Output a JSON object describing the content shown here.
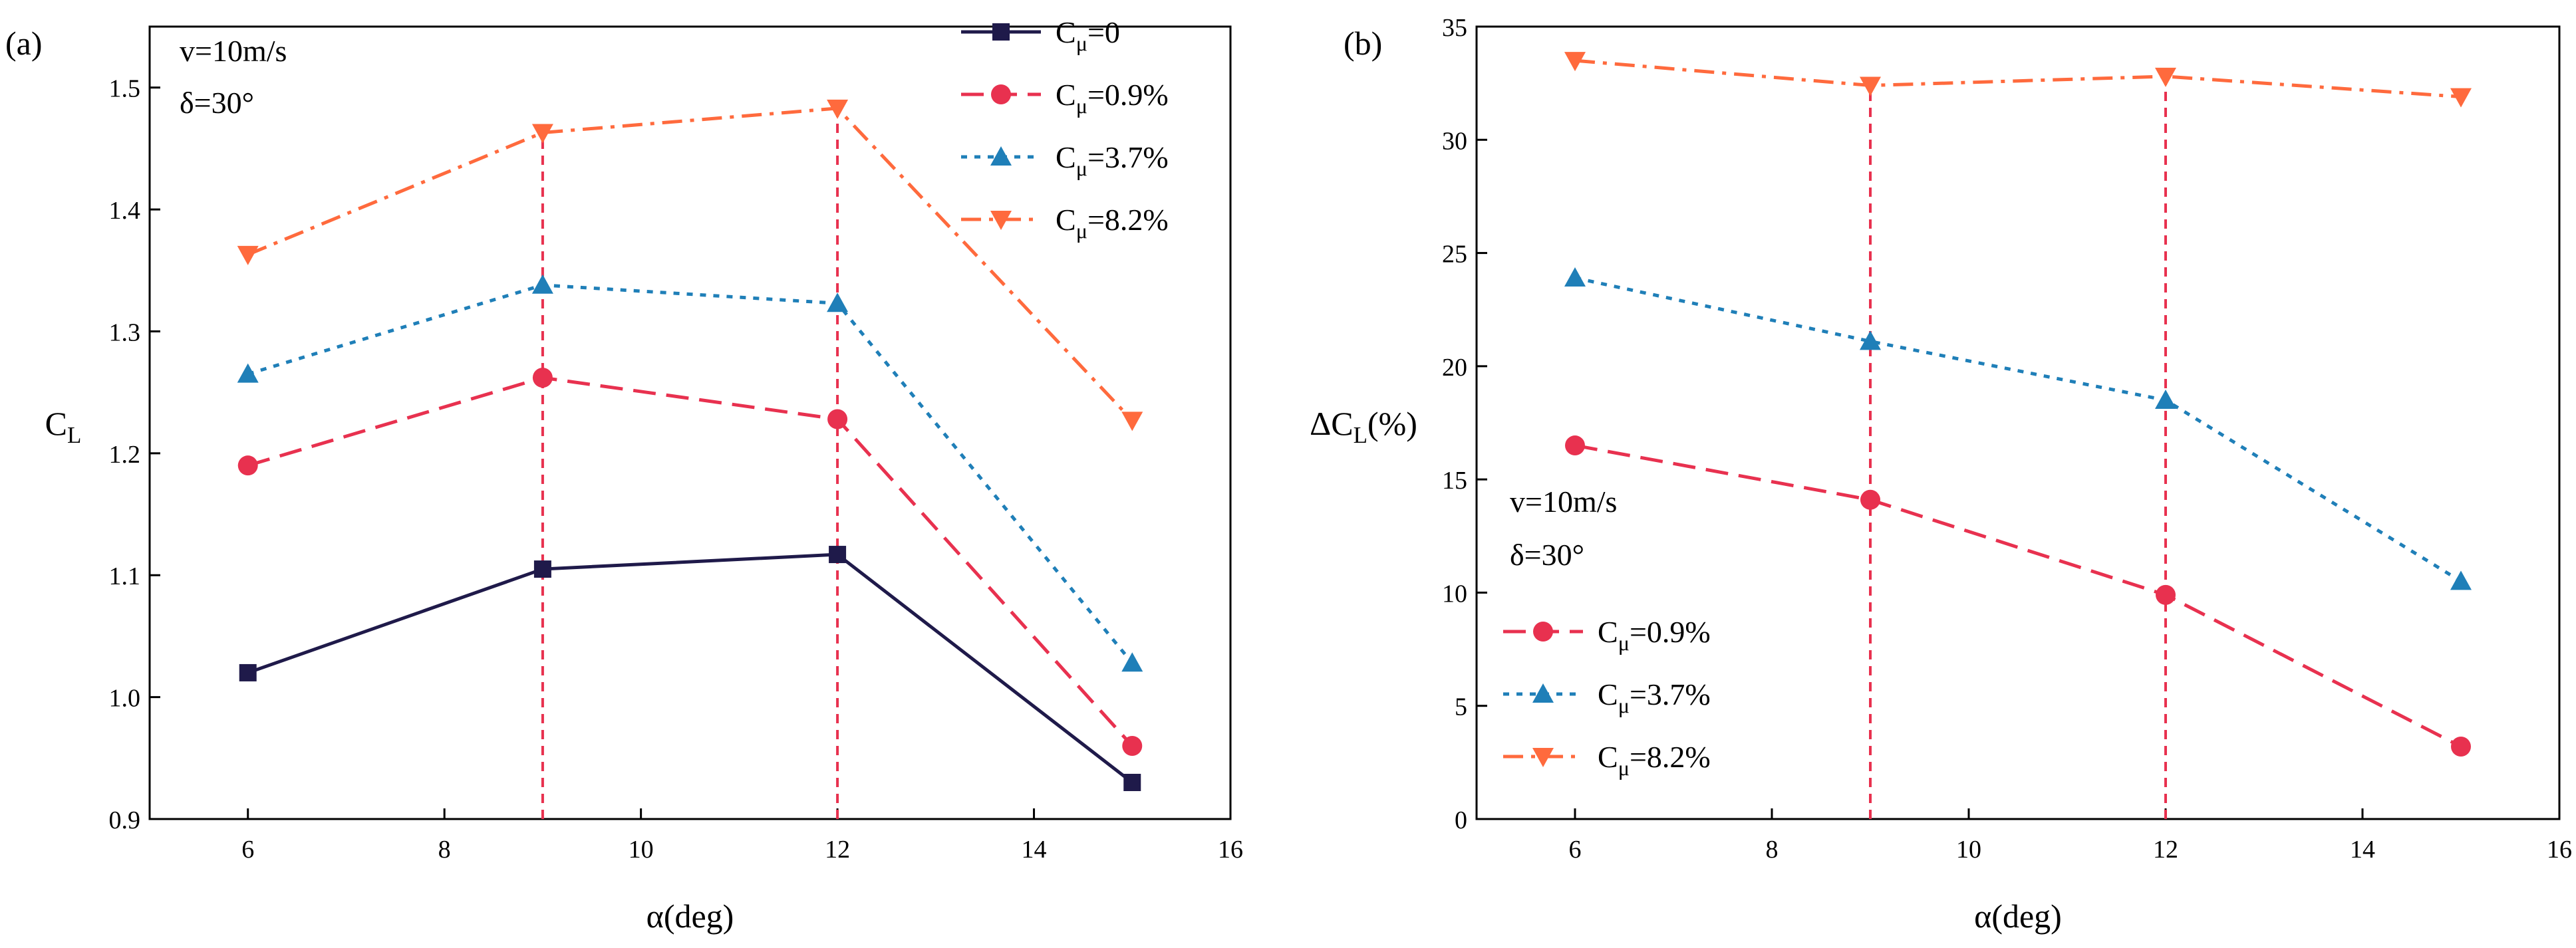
{
  "chart_data": [
    {
      "panel": "(a)",
      "type": "line",
      "title": "",
      "xlabel": "α(deg)",
      "ylabel": {
        "base": "C",
        "sub": "L",
        "suffix": ""
      },
      "xlim": [
        5,
        16
      ],
      "ylim": [
        0.9,
        1.55
      ],
      "xticks": [
        6,
        8,
        10,
        12,
        14,
        16
      ],
      "yticks": [
        0.9,
        1.0,
        1.1,
        1.2,
        1.3,
        1.4,
        1.5
      ],
      "grid": false,
      "legend_position": "top-right",
      "annotations": [
        "v=10m/s",
        "δ=30°"
      ],
      "ref_lines": [
        9,
        12
      ],
      "x": [
        6,
        9,
        12,
        15
      ],
      "series": [
        {
          "name": {
            "base": "C",
            "sub": "μ",
            "suffix": "=0"
          },
          "values": [
            1.02,
            1.105,
            1.117,
            0.93
          ],
          "color": "#1f1a4a",
          "marker": "square",
          "dash": "solid"
        },
        {
          "name": {
            "base": "C",
            "sub": "μ",
            "suffix": "=0.9%"
          },
          "values": [
            1.19,
            1.262,
            1.228,
            0.96
          ],
          "color": "#e8314f",
          "marker": "circle",
          "dash": "dashed"
        },
        {
          "name": {
            "base": "C",
            "sub": "μ",
            "suffix": "=3.7%"
          },
          "values": [
            1.265,
            1.338,
            1.323,
            1.028
          ],
          "color": "#1f7fb8",
          "marker": "triangle-up",
          "dash": "dotted"
        },
        {
          "name": {
            "base": "C",
            "sub": "μ",
            "suffix": "=8.2%"
          },
          "values": [
            1.363,
            1.463,
            1.483,
            1.227
          ],
          "color": "#ff6a3d",
          "marker": "triangle-down",
          "dash": "dashdot"
        }
      ]
    },
    {
      "panel": "(b)",
      "type": "line",
      "title": "",
      "xlabel": "α(deg)",
      "ylabel": {
        "base": "ΔC",
        "sub": "L",
        "suffix": "(%)"
      },
      "xlim": [
        5,
        16
      ],
      "ylim": [
        0,
        35
      ],
      "xticks": [
        6,
        8,
        10,
        12,
        14,
        16
      ],
      "yticks": [
        0,
        5,
        10,
        15,
        20,
        25,
        30,
        35
      ],
      "grid": false,
      "legend_position": "bottom-left",
      "annotations": [
        "v=10m/s",
        "δ=30°"
      ],
      "ref_lines": [
        9,
        12
      ],
      "x": [
        6,
        9,
        12,
        15
      ],
      "series": [
        {
          "name": {
            "base": "C",
            "sub": "μ",
            "suffix": "=0.9%"
          },
          "values": [
            16.5,
            14.1,
            9.9,
            3.2
          ],
          "color": "#e8314f",
          "marker": "circle",
          "dash": "dashed"
        },
        {
          "name": {
            "base": "C",
            "sub": "μ",
            "suffix": "=3.7%"
          },
          "values": [
            23.9,
            21.1,
            18.5,
            10.5
          ],
          "color": "#1f7fb8",
          "marker": "triangle-up",
          "dash": "dotted"
        },
        {
          "name": {
            "base": "C",
            "sub": "μ",
            "suffix": "=8.2%"
          },
          "values": [
            33.5,
            32.4,
            32.8,
            31.9
          ],
          "color": "#ff6a3d",
          "marker": "triangle-down",
          "dash": "dashdot"
        }
      ]
    }
  ]
}
